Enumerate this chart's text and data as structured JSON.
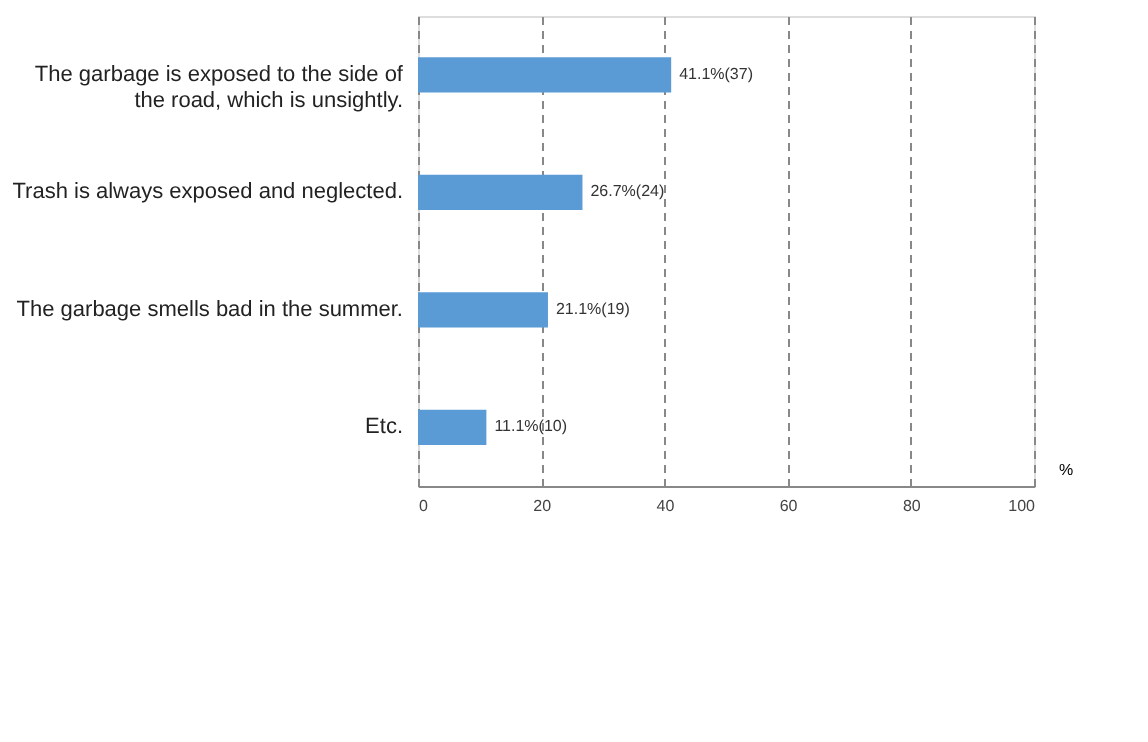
{
  "chart_data": {
    "type": "bar",
    "orientation": "horizontal",
    "categories": [
      "The garbage is exposed to the side of the road, which is unsightly.",
      "Trash is always exposed and neglected.",
      "The garbage smells bad in the summer.",
      "Etc."
    ],
    "values": [
      41.1,
      26.7,
      21.1,
      11.1
    ],
    "value_labels": [
      "41.1%(37)",
      "26.7%(24)",
      "21.1%(19)",
      "11.1%(10)"
    ],
    "color": "#5b9bd5",
    "xlim": [
      0,
      100
    ],
    "xticks": [
      0,
      20,
      40,
      60,
      80,
      100
    ],
    "xlabel": "%",
    "grid": "x"
  }
}
